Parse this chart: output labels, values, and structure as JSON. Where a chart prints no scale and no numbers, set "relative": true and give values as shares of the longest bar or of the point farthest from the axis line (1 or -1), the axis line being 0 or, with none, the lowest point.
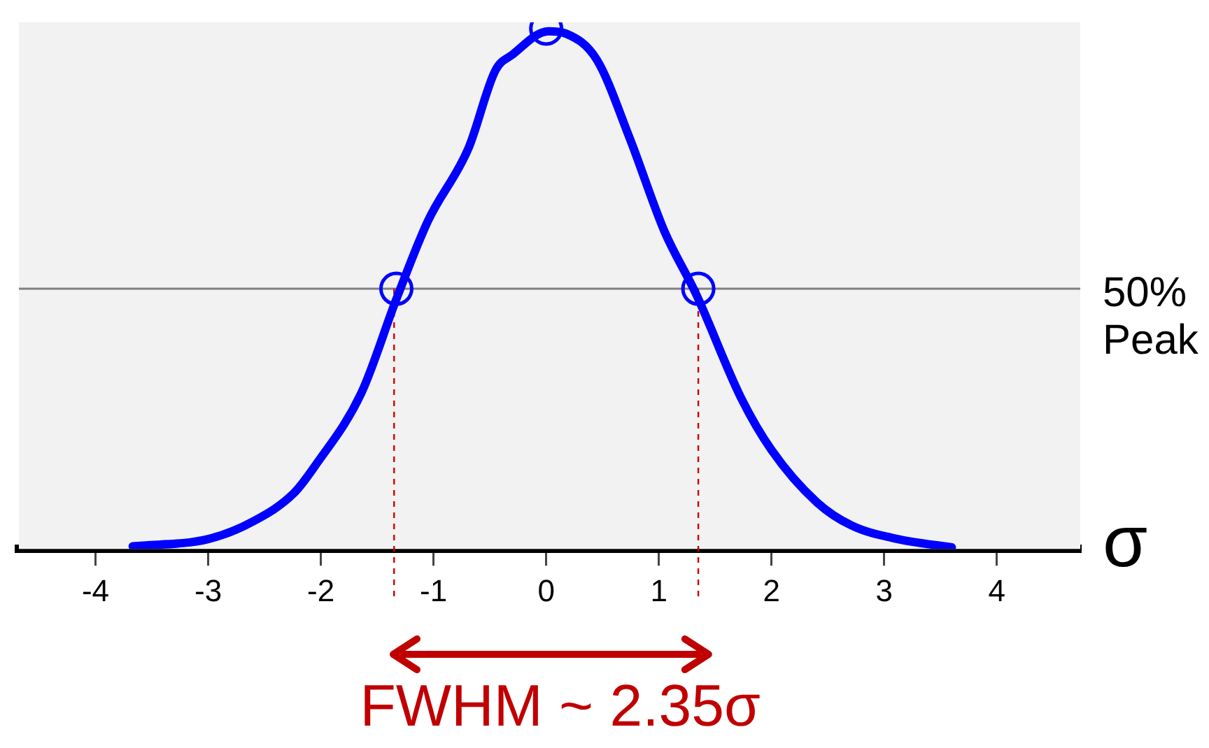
{
  "chart_data": {
    "type": "line",
    "relative": true,
    "xlabel": "σ",
    "xlim": [
      -4.68,
      4.74
    ],
    "xticks": [
      -4,
      -3,
      -2,
      -1,
      0,
      1,
      2,
      3,
      4
    ],
    "legend": false,
    "annotations": [
      "FWHM ~ 2.35σ"
    ],
    "ref_lines": [
      {
        "axis": "y",
        "value": 0.5,
        "label": "50% Peak",
        "color": "#808080",
        "line_style": "solid"
      },
      {
        "axis": "x",
        "value": -1.35,
        "color": "#cc0000",
        "line_style": "dashed"
      },
      {
        "axis": "x",
        "value": 1.35,
        "color": "#cc0000",
        "line_style": "dashed"
      }
    ],
    "series": [
      {
        "type": "line",
        "color": "#0000ff",
        "marker": "none",
        "x": [
          -3.67,
          -3.0,
          -2.6,
          -2.24,
          -2.05,
          -1.64,
          -1.33,
          -1.05,
          -0.69,
          -0.45,
          -0.3,
          0.02,
          0.18,
          0.45,
          0.74,
          1.05,
          1.33,
          1.73,
          2.0,
          2.4,
          2.71,
          3.12,
          3.6
        ],
        "values": [
          0.005,
          0.019,
          0.053,
          0.107,
          0.16,
          0.3,
          0.48,
          0.63,
          0.77,
          0.92,
          0.95,
          0.995,
          0.99,
          0.94,
          0.79,
          0.61,
          0.49,
          0.29,
          0.19,
          0.09,
          0.045,
          0.019,
          0.003
        ]
      },
      {
        "type": "scatter",
        "color": "#0000ff",
        "marker": "circle",
        "x": [
          -1.33,
          0,
          1.35
        ],
        "values": [
          0.5,
          1,
          0.5
        ]
      }
    ]
  }
}
